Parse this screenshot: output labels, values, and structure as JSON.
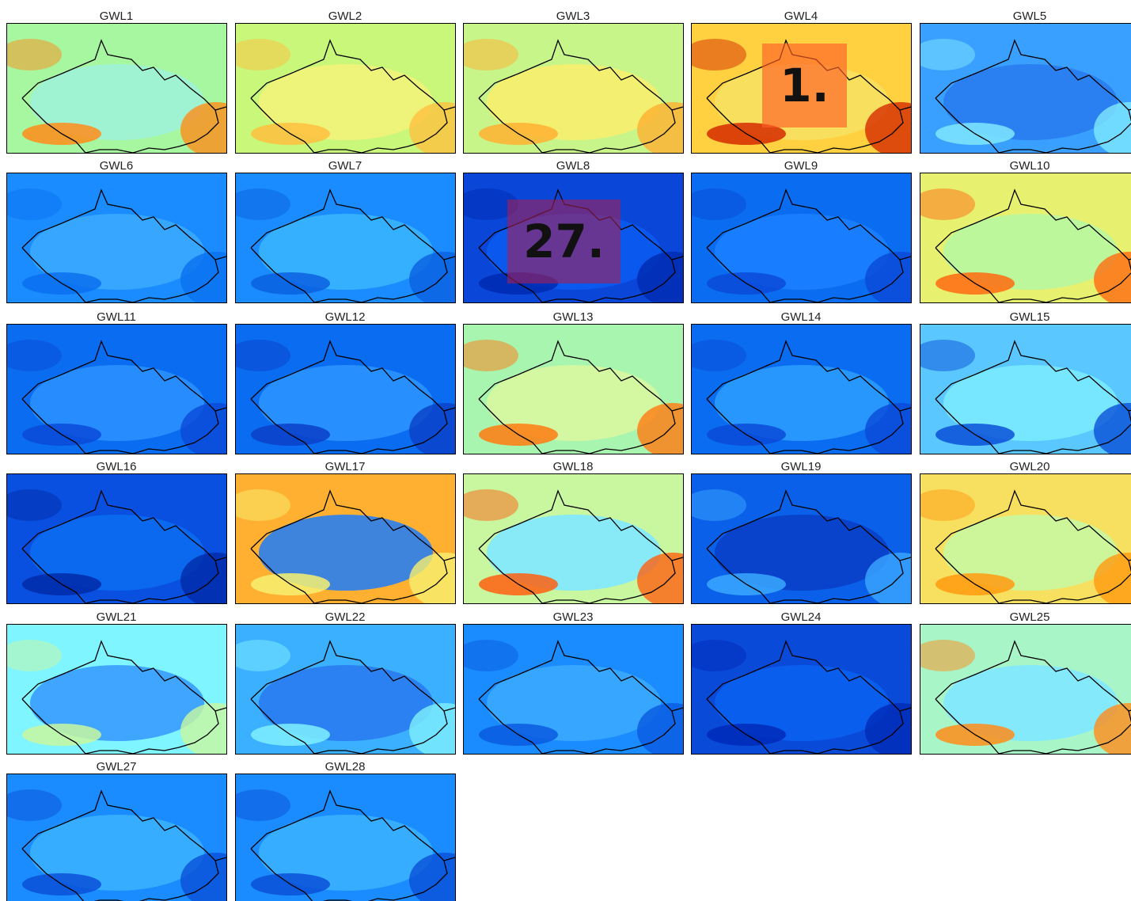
{
  "panels": [
    {
      "title": "GWL1"
    },
    {
      "title": "GWL2"
    },
    {
      "title": "GWL3"
    },
    {
      "title": "GWL4"
    },
    {
      "title": "GWL5"
    },
    {
      "title": "GWL6"
    },
    {
      "title": "GWL7"
    },
    {
      "title": "GWL8"
    },
    {
      "title": "GWL9"
    },
    {
      "title": "GWL10"
    },
    {
      "title": "GWL11"
    },
    {
      "title": "GWL12"
    },
    {
      "title": "GWL13"
    },
    {
      "title": "GWL14"
    },
    {
      "title": "GWL15"
    },
    {
      "title": "GWL16"
    },
    {
      "title": "GWL17"
    },
    {
      "title": "GWL18"
    },
    {
      "title": "GWL19"
    },
    {
      "title": "GWL20"
    },
    {
      "title": "GWL21"
    },
    {
      "title": "GWL22"
    },
    {
      "title": "GWL23"
    },
    {
      "title": "GWL24"
    },
    {
      "title": "GWL25"
    },
    {
      "title": "GWL27"
    },
    {
      "title": "GWL28"
    }
  ],
  "overlays": [
    {
      "label": "1."
    },
    {
      "label": "27."
    }
  ]
}
